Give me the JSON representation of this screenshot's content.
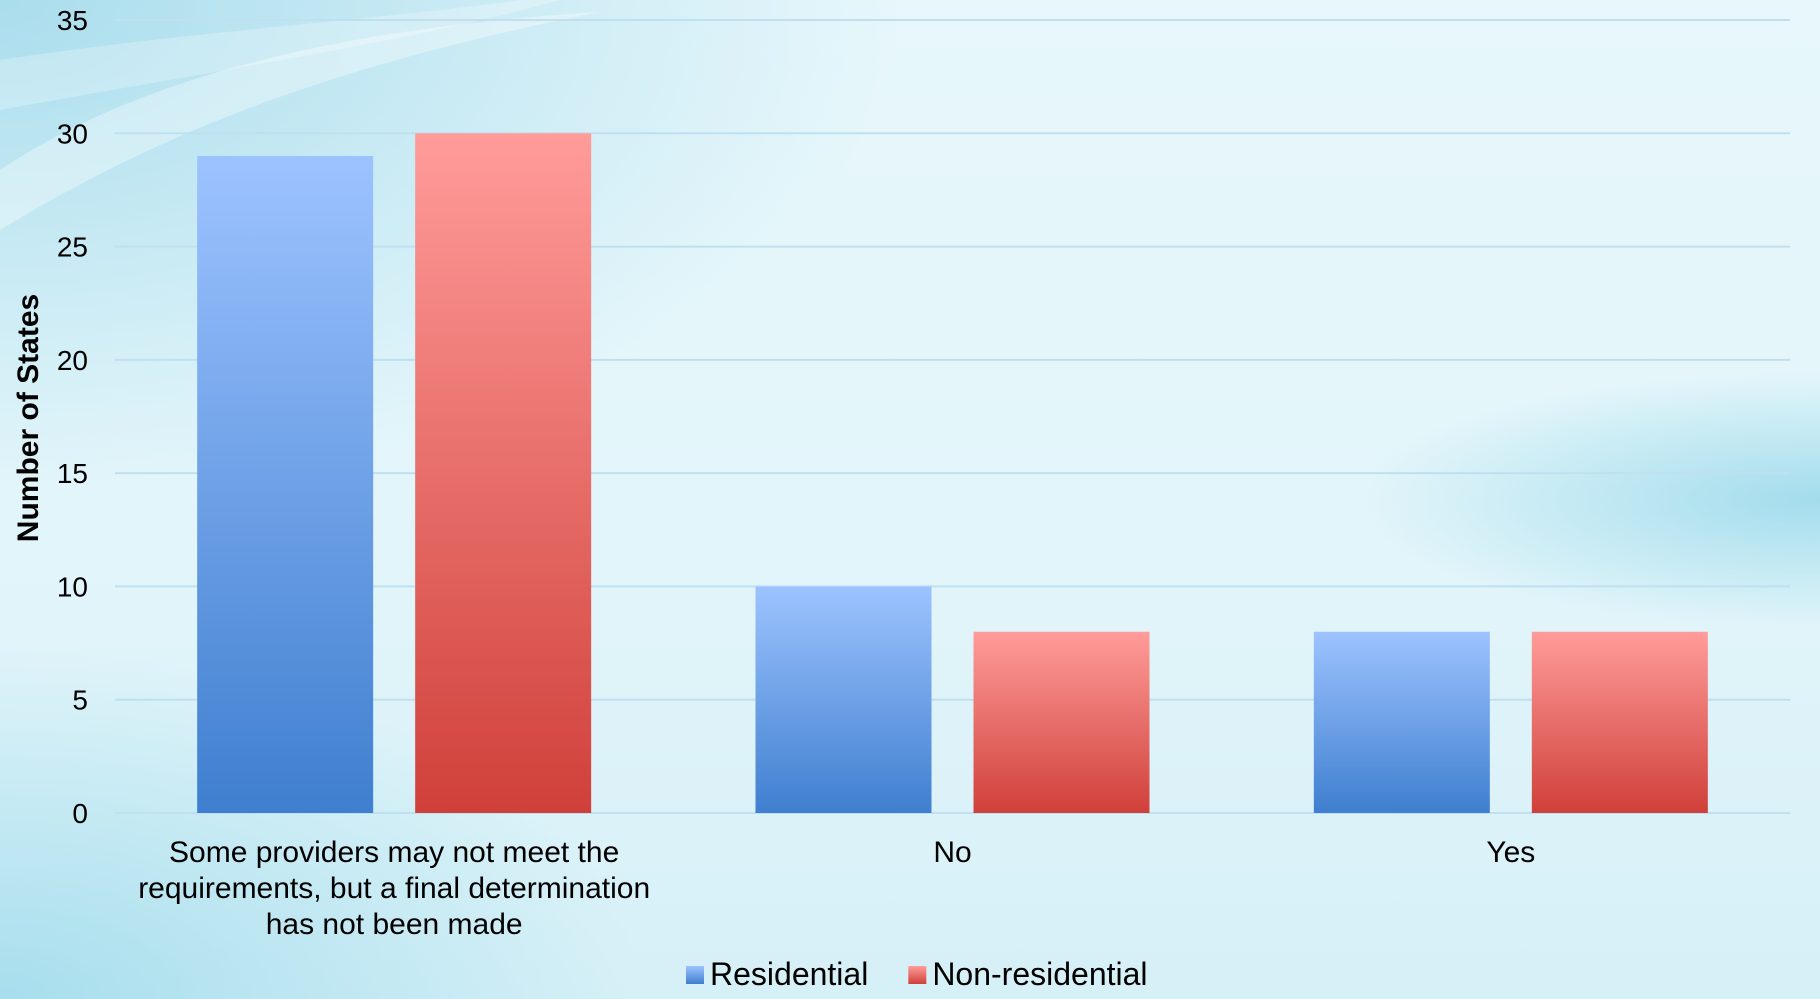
{
  "chart_data": {
    "type": "bar",
    "categories": [
      "Some providers may not meet the requirements, but a final determination has not been made",
      "No",
      "Yes"
    ],
    "category_label_lines": [
      [
        "Some providers may not meet the",
        "requirements, but a final determination",
        "has not been made"
      ],
      [
        "No"
      ],
      [
        "Yes"
      ]
    ],
    "series": [
      {
        "name": "Residential",
        "values": [
          29,
          10,
          8
        ],
        "color_top": "#9dc3ff",
        "color_bottom": "#3f7fcf"
      },
      {
        "name": "Non-residential",
        "values": [
          30,
          8,
          8
        ],
        "color_top": "#ff9c9a",
        "color_bottom": "#d0403a"
      }
    ],
    "title": "",
    "xlabel": "",
    "ylabel": "Number of States",
    "ylim": [
      0,
      35
    ],
    "yticks": [
      0,
      5,
      10,
      15,
      20,
      25,
      30,
      35
    ],
    "grid": true,
    "legend_position": "bottom"
  }
}
